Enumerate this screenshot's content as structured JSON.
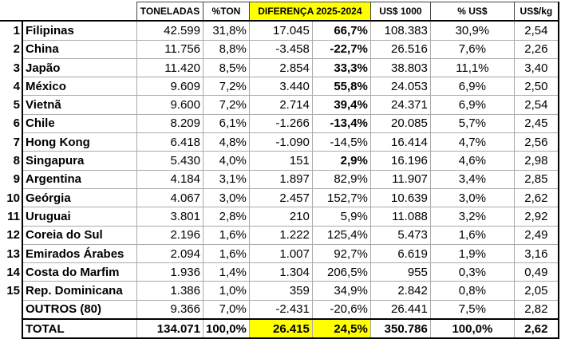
{
  "headers": {
    "toneladas": "TONELADAS",
    "pct_ton": "%TON",
    "diferenca": "DIFERENÇA 2025-2024",
    "usd": "US$ 1000",
    "pct_usd": "% US$",
    "usd_kg": "US$/kg"
  },
  "rows": [
    {
      "rank": "1",
      "name": "Filipinas",
      "ton": "42.599",
      "pct_ton": "31,8%",
      "dif": "17.045",
      "dif_pct": "66,7%",
      "bold": true,
      "usd": "108.383",
      "pct_usd": "30,9%",
      "usd_kg": "2,54"
    },
    {
      "rank": "2",
      "name": "China",
      "ton": "11.756",
      "pct_ton": "8,8%",
      "dif": "-3.458",
      "dif_pct": "-22,7%",
      "bold": true,
      "usd": "26.516",
      "pct_usd": "7,6%",
      "usd_kg": "2,26"
    },
    {
      "rank": "3",
      "name": "Japão",
      "ton": "11.420",
      "pct_ton": "8,5%",
      "dif": "2.854",
      "dif_pct": "33,3%",
      "bold": true,
      "usd": "38.803",
      "pct_usd": "11,1%",
      "usd_kg": "3,40"
    },
    {
      "rank": "4",
      "name": "México",
      "ton": "9.609",
      "pct_ton": "7,2%",
      "dif": "3.440",
      "dif_pct": "55,8%",
      "bold": true,
      "usd": "24.053",
      "pct_usd": "6,9%",
      "usd_kg": "2,50"
    },
    {
      "rank": "5",
      "name": "Vietnã",
      "ton": "9.600",
      "pct_ton": "7,2%",
      "dif": "2.714",
      "dif_pct": "39,4%",
      "bold": true,
      "usd": "24.371",
      "pct_usd": "6,9%",
      "usd_kg": "2,54"
    },
    {
      "rank": "6",
      "name": "Chile",
      "ton": "8.209",
      "pct_ton": "6,1%",
      "dif": "-1.266",
      "dif_pct": "-13,4%",
      "bold": true,
      "usd": "20.085",
      "pct_usd": "5,7%",
      "usd_kg": "2,45"
    },
    {
      "rank": "7",
      "name": "Hong Kong",
      "ton": "6.418",
      "pct_ton": "4,8%",
      "dif": "-1.090",
      "dif_pct": "-14,5%",
      "bold": false,
      "usd": "16.414",
      "pct_usd": "4,7%",
      "usd_kg": "2,56"
    },
    {
      "rank": "8",
      "name": "Singapura",
      "ton": "5.430",
      "pct_ton": "4,0%",
      "dif": "151",
      "dif_pct": "2,9%",
      "bold": true,
      "usd": "16.196",
      "pct_usd": "4,6%",
      "usd_kg": "2,98"
    },
    {
      "rank": "9",
      "name": "Argentina",
      "ton": "4.184",
      "pct_ton": "3,1%",
      "dif": "1.897",
      "dif_pct": "82,9%",
      "bold": false,
      "usd": "11.907",
      "pct_usd": "3,4%",
      "usd_kg": "2,85"
    },
    {
      "rank": "10",
      "name": "Geórgia",
      "ton": "4.067",
      "pct_ton": "3,0%",
      "dif": "2.457",
      "dif_pct": "152,7%",
      "bold": false,
      "usd": "10.639",
      "pct_usd": "3,0%",
      "usd_kg": "2,62"
    },
    {
      "rank": "11",
      "name": "Uruguai",
      "ton": "3.801",
      "pct_ton": "2,8%",
      "dif": "210",
      "dif_pct": "5,9%",
      "bold": false,
      "usd": "11.088",
      "pct_usd": "3,2%",
      "usd_kg": "2,92"
    },
    {
      "rank": "12",
      "name": "Coreia do Sul",
      "ton": "2.196",
      "pct_ton": "1,6%",
      "dif": "1.222",
      "dif_pct": "125,4%",
      "bold": false,
      "usd": "5.473",
      "pct_usd": "1,6%",
      "usd_kg": "2,49"
    },
    {
      "rank": "13",
      "name": "Emirados Árabes",
      "ton": "2.094",
      "pct_ton": "1,6%",
      "dif": "1.007",
      "dif_pct": "92,7%",
      "bold": false,
      "usd": "6.619",
      "pct_usd": "1,9%",
      "usd_kg": "3,16"
    },
    {
      "rank": "14",
      "name": "Costa do Marfim",
      "ton": "1.936",
      "pct_ton": "1,4%",
      "dif": "1.304",
      "dif_pct": "206,5%",
      "bold": false,
      "usd": "955",
      "pct_usd": "0,3%",
      "usd_kg": "0,49"
    },
    {
      "rank": "15",
      "name": "Rep. Dominicana",
      "ton": "1.386",
      "pct_ton": "1,0%",
      "dif": "359",
      "dif_pct": "34,9%",
      "bold": false,
      "usd": "2.842",
      "pct_usd": "0,8%",
      "usd_kg": "2,05"
    },
    {
      "rank": "",
      "name": "OUTROS (80)",
      "ton": "9.366",
      "pct_ton": "7,0%",
      "dif": "-2.431",
      "dif_pct": "-20,6%",
      "bold": false,
      "usd": "26.441",
      "pct_usd": "7,5%",
      "usd_kg": "2,82"
    }
  ],
  "total": {
    "name": "TOTAL",
    "ton": "134.071",
    "pct_ton": "100,0%",
    "dif": "26.415",
    "dif_pct": "24,5%",
    "usd": "350.786",
    "pct_usd": "100,0%",
    "usd_kg": "2,62"
  },
  "colors": {
    "highlight": "#ffff00"
  }
}
